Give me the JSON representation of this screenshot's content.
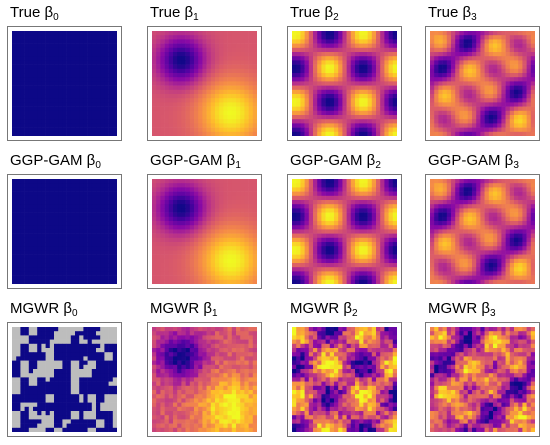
{
  "chart_data": {
    "type": "heatmap",
    "grid": [
      25,
      25
    ],
    "colormap": "plasma",
    "panels": [
      {
        "prefix": "True",
        "sub": "0",
        "field": "const"
      },
      {
        "prefix": "True",
        "sub": "1",
        "field": "smooth"
      },
      {
        "prefix": "True",
        "sub": "2",
        "field": "wave"
      },
      {
        "prefix": "True",
        "sub": "3",
        "field": "wave3"
      },
      {
        "prefix": "GGP-GAM",
        "sub": "0",
        "field": "const"
      },
      {
        "prefix": "GGP-GAM",
        "sub": "1",
        "field": "smooth"
      },
      {
        "prefix": "GGP-GAM",
        "sub": "2",
        "field": "wave"
      },
      {
        "prefix": "GGP-GAM",
        "sub": "3",
        "field": "wave3"
      },
      {
        "prefix": "MGWR",
        "sub": "0",
        "field": "constNoisy"
      },
      {
        "prefix": "MGWR",
        "sub": "1",
        "field": "smoothNoisy"
      },
      {
        "prefix": "MGWR",
        "sub": "2",
        "field": "waveNoisy"
      },
      {
        "prefix": "MGWR",
        "sub": "3",
        "field": "wave3Noisy"
      }
    ],
    "colors": {
      "const": "#0d0887",
      "missing": "#bdbdbd"
    }
  }
}
